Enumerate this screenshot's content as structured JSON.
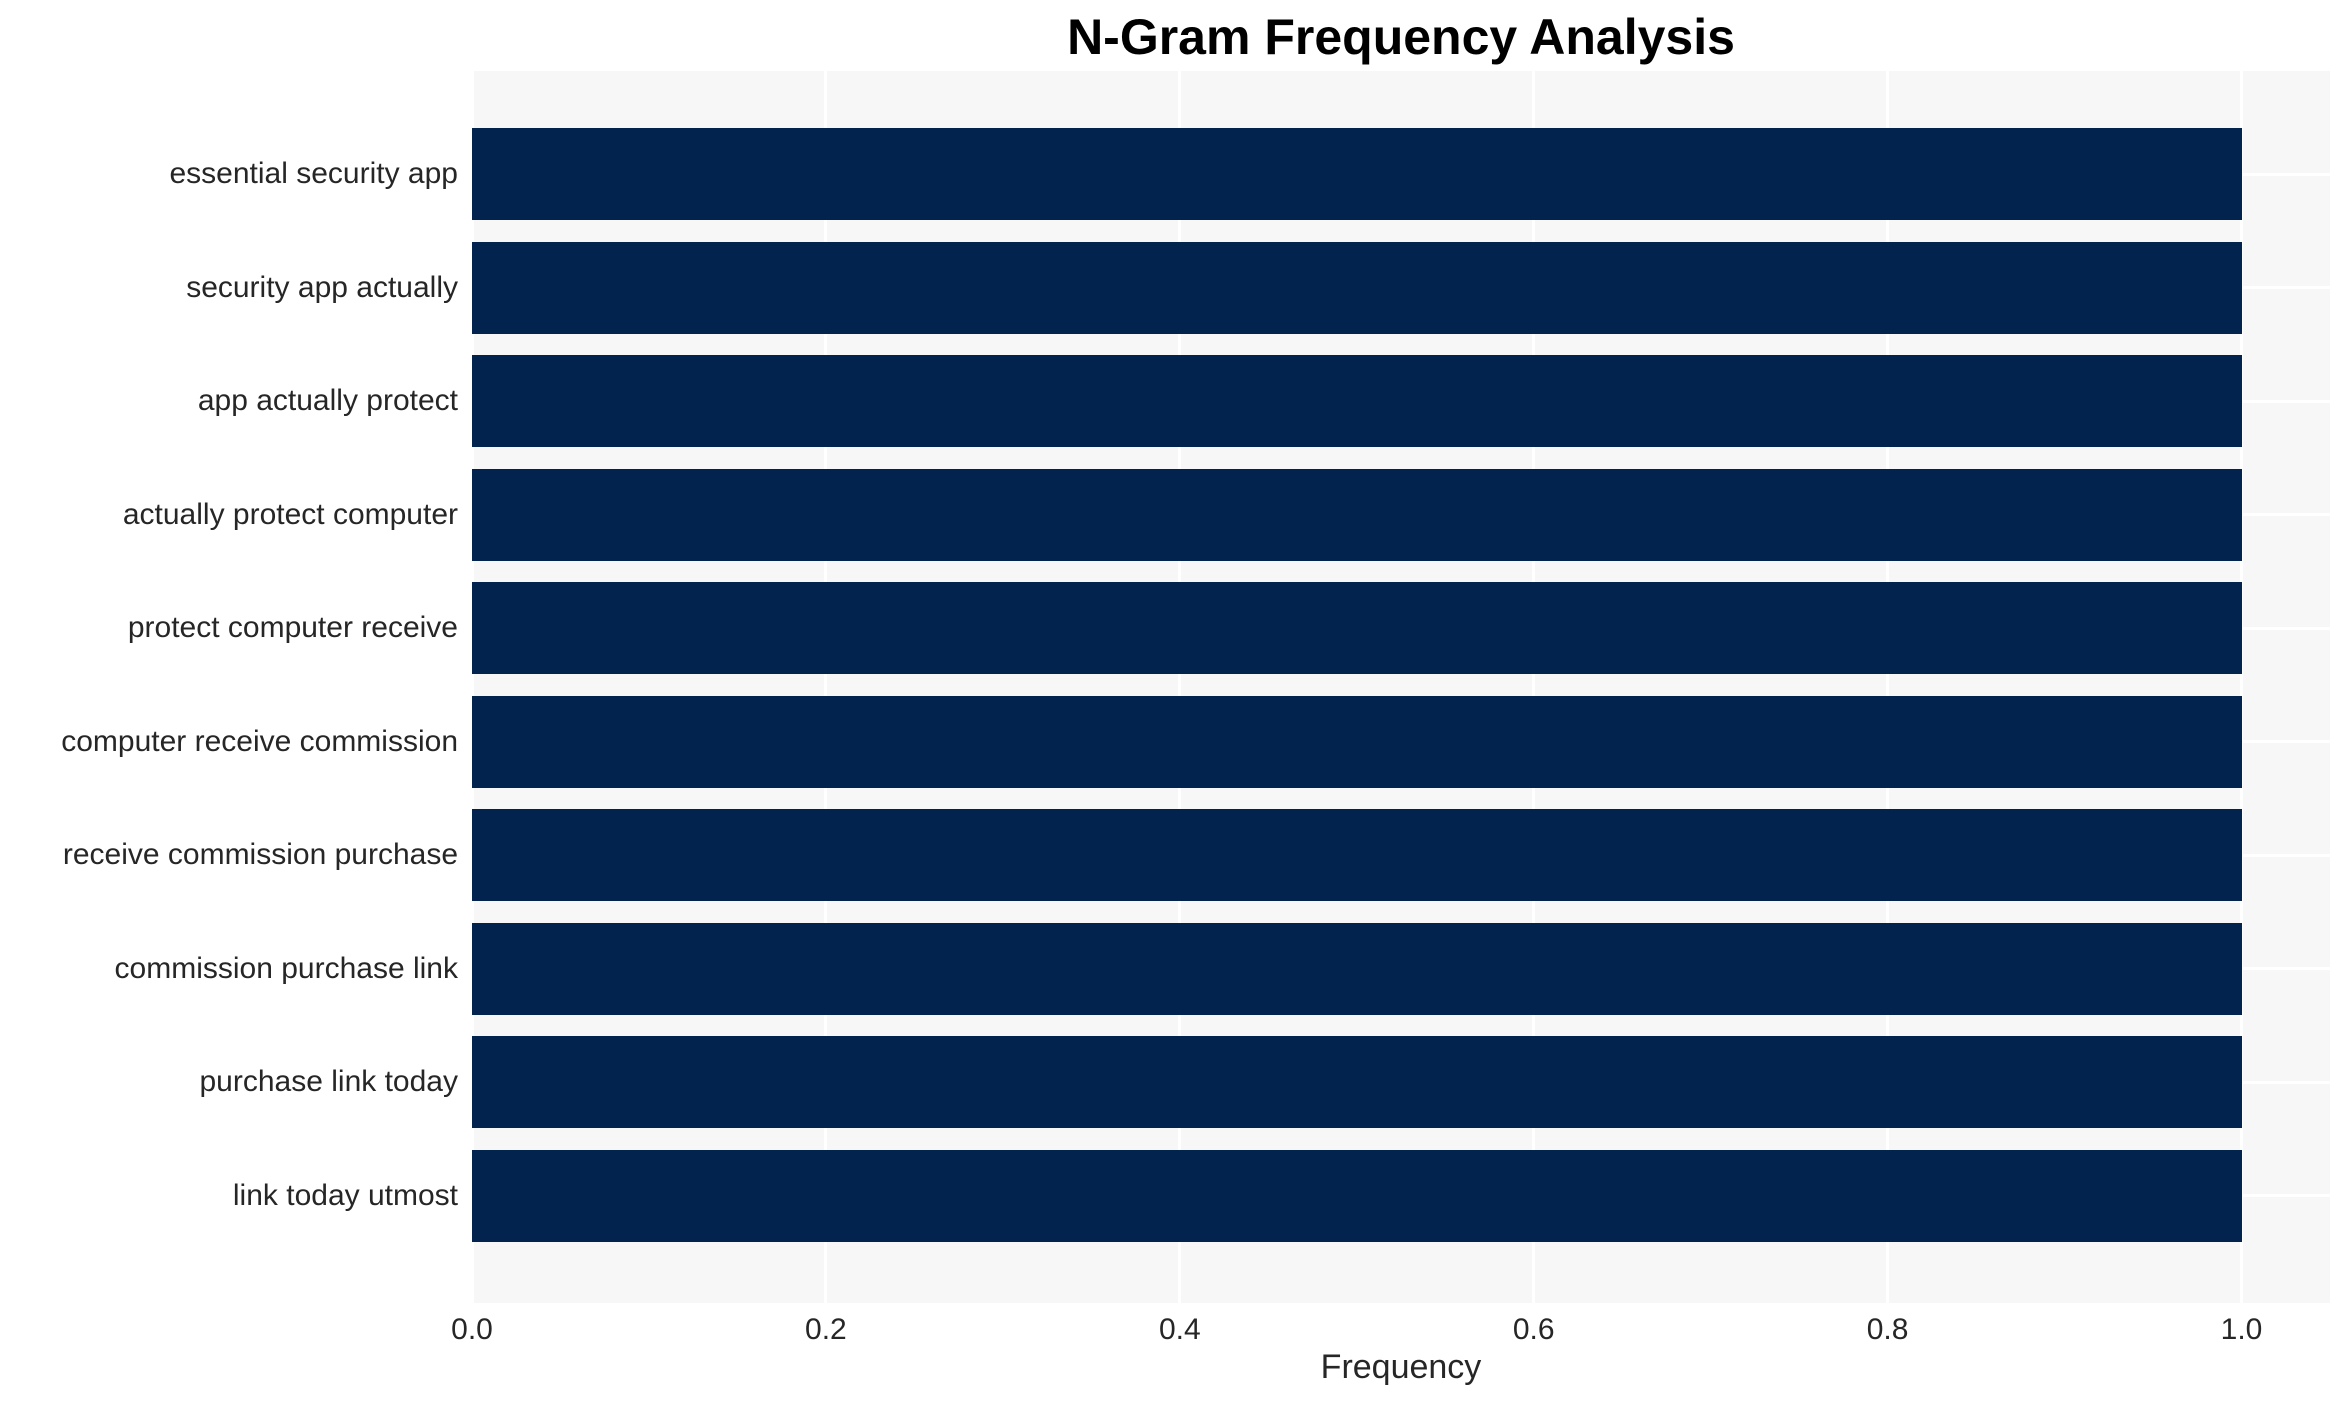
{
  "chart_data": {
    "type": "bar",
    "orientation": "horizontal",
    "title": "N-Gram Frequency Analysis",
    "xlabel": "Frequency",
    "ylabel": "",
    "categories": [
      "essential security app",
      "security app actually",
      "app actually protect",
      "actually protect computer",
      "protect computer receive",
      "computer receive commission",
      "receive commission purchase",
      "commission purchase link",
      "purchase link today",
      "link today utmost"
    ],
    "values": [
      1.0,
      1.0,
      1.0,
      1.0,
      1.0,
      1.0,
      1.0,
      1.0,
      1.0,
      1.0
    ],
    "x_ticks": [
      0.0,
      0.2,
      0.4,
      0.6,
      0.8,
      1.0
    ],
    "x_tick_labels": [
      "0.0",
      "0.2",
      "0.4",
      "0.6",
      "0.8",
      "1.0"
    ],
    "xlim": [
      0,
      1.05
    ],
    "grid": true,
    "legend": false,
    "colors": {
      "bar": "#02234e",
      "plot_bg": "#f7f7f7",
      "grid": "#ffffff",
      "tick_text": "#262626",
      "title_text": "#000000",
      "figure_bg": "#ffffff"
    }
  }
}
